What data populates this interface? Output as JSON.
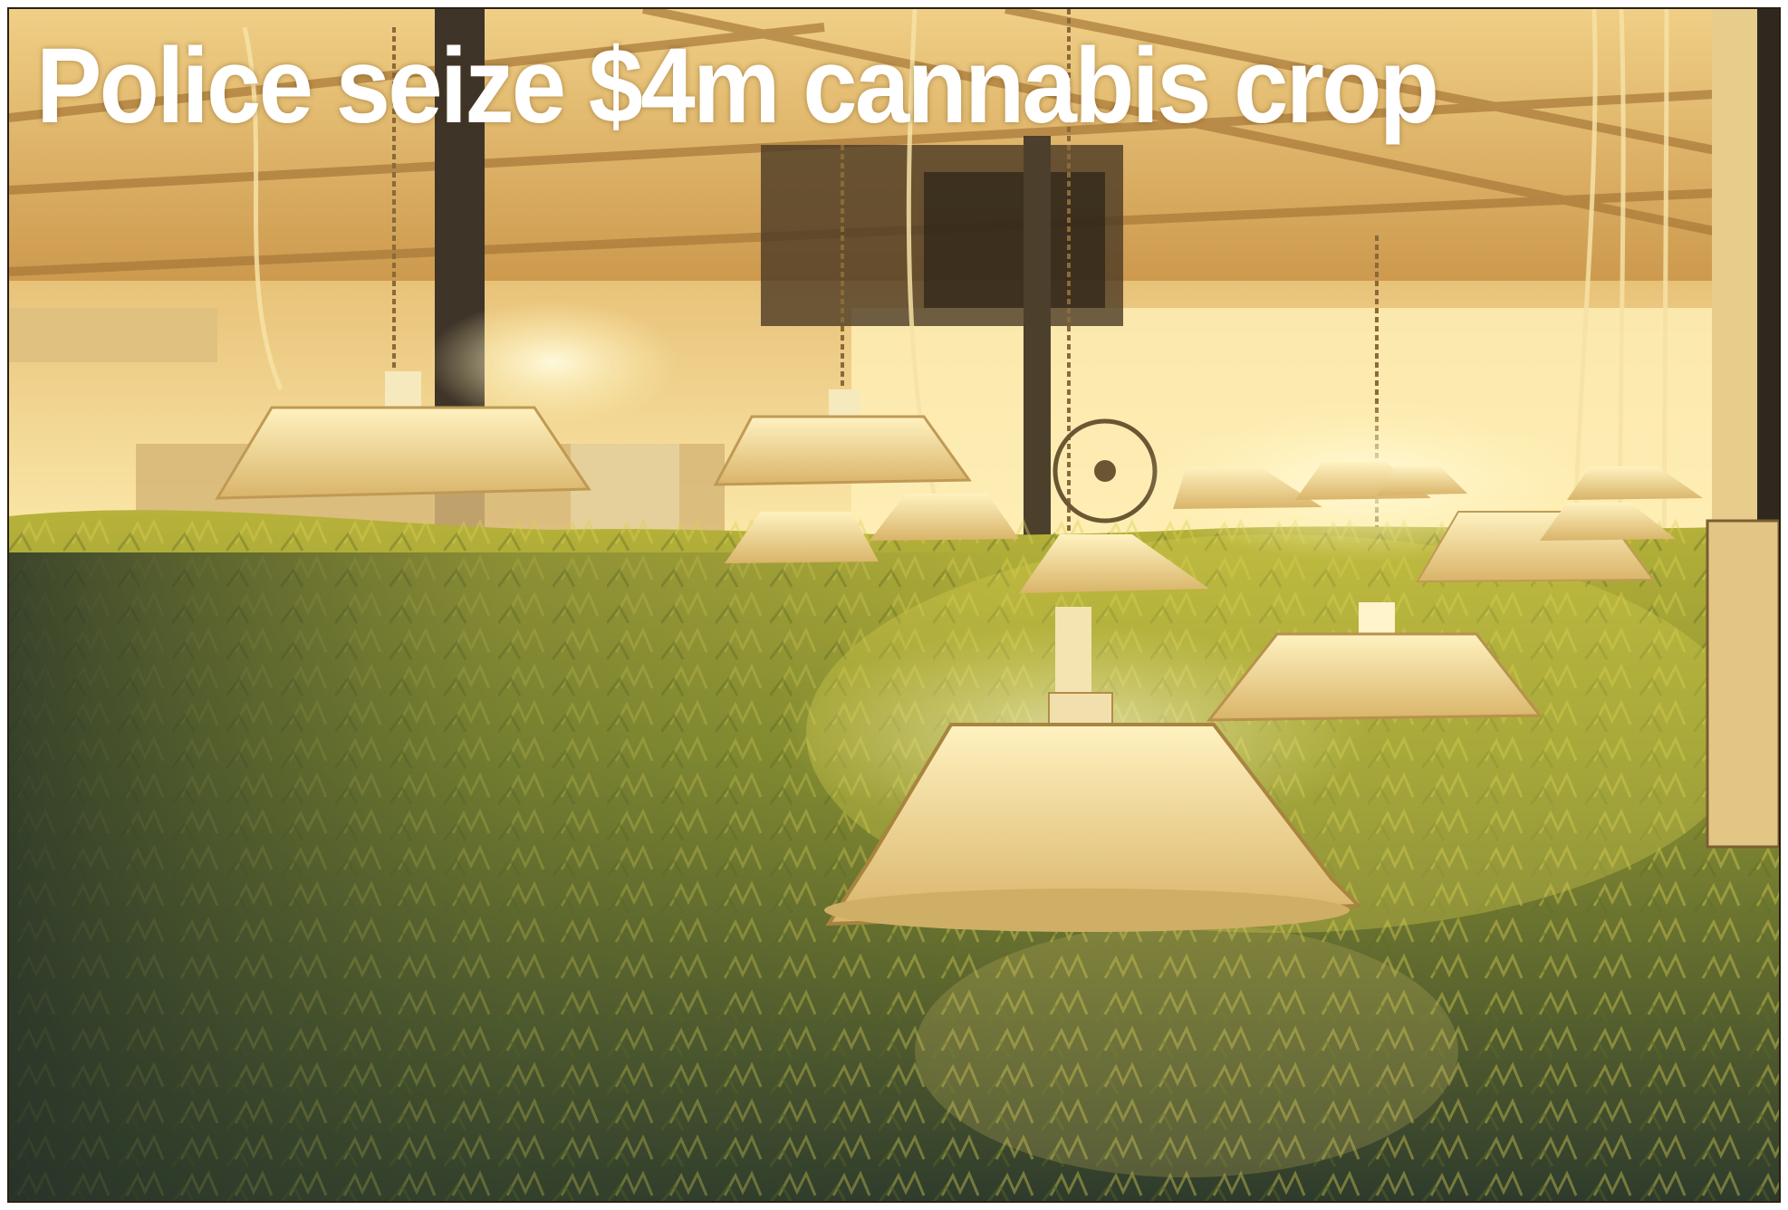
{
  "headline": {
    "text": "Police seize $4m cannabis crop",
    "color": "#ffffff"
  },
  "photo": {
    "scene": "indoor-cannabis-grow-room",
    "palette": {
      "light": "#fff6c8",
      "ceiling": "#e9c27a",
      "wall": "#f2d58e",
      "foliage_bright": "#c8bd3a",
      "foliage_mid": "#7d8a2a",
      "foliage_dark": "#2f3d2a",
      "shade": "#f3e6b3"
    }
  }
}
